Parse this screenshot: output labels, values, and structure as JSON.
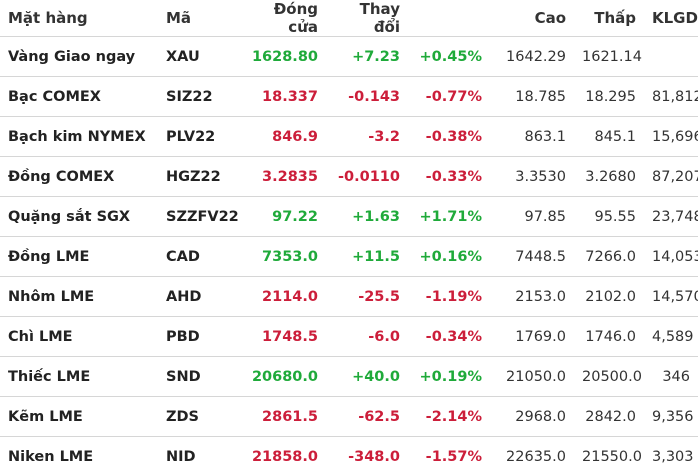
{
  "colors": {
    "up": "#1faa3a",
    "down": "#cc1e3a",
    "text": "#222222",
    "divider": "#d6d6d6"
  },
  "headers": [
    "Mặt hàng",
    "Mã",
    "Đóng cửa",
    "Thay đổi",
    "",
    "Cao",
    "Thấp",
    "KLGD"
  ],
  "rows": [
    {
      "name": "Vàng Giao ngay",
      "code": "XAU",
      "close": "1628.80",
      "change": "+7.23",
      "pct": "+0.45%",
      "high": "1642.29",
      "low": "1621.14",
      "volume": "",
      "dir": "up"
    },
    {
      "name": "Bạc COMEX",
      "code": "SIZ22",
      "close": "18.337",
      "change": "-0.143",
      "pct": "-0.77%",
      "high": "18.785",
      "low": "18.295",
      "volume": "81,812",
      "dir": "down"
    },
    {
      "name": "Bạch kim NYMEX",
      "code": "PLV22",
      "close": "846.9",
      "change": "-3.2",
      "pct": "-0.38%",
      "high": "863.1",
      "low": "845.1",
      "volume": "15,696",
      "dir": "down"
    },
    {
      "name": "Đồng COMEX",
      "code": "HGZ22",
      "close": "3.2835",
      "change": "-0.0110",
      "pct": "-0.33%",
      "high": "3.3530",
      "low": "3.2680",
      "volume": "87,207",
      "dir": "down"
    },
    {
      "name": "Quặng sắt SGX",
      "code": "SZZFV22",
      "close": "97.22",
      "change": "+1.63",
      "pct": "+1.71%",
      "high": "97.85",
      "low": "95.55",
      "volume": "23,748",
      "dir": "up"
    },
    {
      "name": "Đồng LME",
      "code": "CAD",
      "close": "7353.0",
      "change": "+11.5",
      "pct": "+0.16%",
      "high": "7448.5",
      "low": "7266.0",
      "volume": "14,053",
      "dir": "up"
    },
    {
      "name": "Nhôm LME",
      "code": "AHD",
      "close": "2114.0",
      "change": "-25.5",
      "pct": "-1.19%",
      "high": "2153.0",
      "low": "2102.0",
      "volume": "14,570",
      "dir": "down"
    },
    {
      "name": "Chì LME",
      "code": "PBD",
      "close": "1748.5",
      "change": "-6.0",
      "pct": "-0.34%",
      "high": "1769.0",
      "low": "1746.0",
      "volume": "4,589",
      "dir": "down"
    },
    {
      "name": "Thiếc LME",
      "code": "SND",
      "close": "20680.0",
      "change": "+40.0",
      "pct": "+0.19%",
      "high": "21050.0",
      "low": "20500.0",
      "volume": "346",
      "dir": "up"
    },
    {
      "name": "Kẽm LME",
      "code": "ZDS",
      "close": "2861.5",
      "change": "-62.5",
      "pct": "-2.14%",
      "high": "2968.0",
      "low": "2842.0",
      "volume": "9,356",
      "dir": "down"
    },
    {
      "name": "Niken LME",
      "code": "NID",
      "close": "21858.0",
      "change": "-348.0",
      "pct": "-1.57%",
      "high": "22635.0",
      "low": "21550.0",
      "volume": "3,303",
      "dir": "down"
    }
  ]
}
